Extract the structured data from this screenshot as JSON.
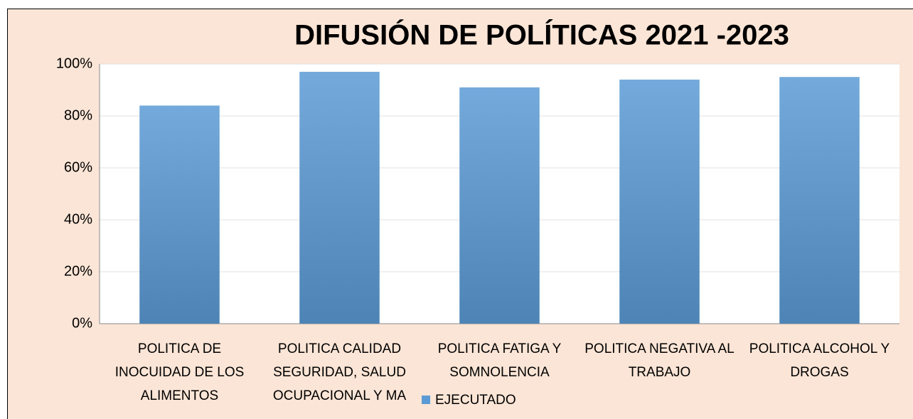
{
  "chart_data": {
    "type": "bar",
    "title": "DIFUSIÓN DE POLÍTICAS 2021 -2023",
    "categories": [
      "POLITICA DE INOCUIDAD DE LOS ALIMENTOS",
      "POLITICA CALIDAD SEGURIDAD, SALUD OCUPACIONAL Y MA",
      "POLITICA FATIGA Y SOMNOLENCIA",
      "POLITICA NEGATIVA AL TRABAJO",
      "POLITICA ALCOHOL Y DROGAS"
    ],
    "series": [
      {
        "name": "EJECUTADO",
        "color": "#5b9bd5",
        "values": [
          84,
          97,
          91,
          94,
          95
        ]
      }
    ],
    "ylim": [
      0,
      100
    ],
    "yticks": [
      {
        "value": 0,
        "label": "0%"
      },
      {
        "value": 20,
        "label": "20%"
      },
      {
        "value": 40,
        "label": "40%"
      },
      {
        "value": 60,
        "label": "60%"
      },
      {
        "value": 80,
        "label": "80%"
      },
      {
        "value": 100,
        "label": "100%"
      }
    ],
    "grid": true,
    "legend": "bottom"
  }
}
